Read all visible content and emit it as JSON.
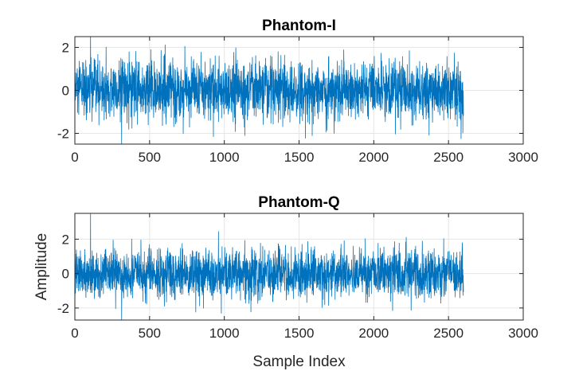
{
  "chart_data": [
    {
      "type": "line",
      "title": "Phantom-I",
      "xlabel": "",
      "ylabel": "",
      "xlim": [
        0,
        3000
      ],
      "ylim": [
        -2.5,
        2.5
      ],
      "xticks": [
        0,
        500,
        1000,
        1500,
        2000,
        2500,
        3000
      ],
      "yticks": [
        -2,
        0,
        2
      ],
      "grid": true,
      "series": [
        {
          "color": "#0072BD",
          "n_samples": 2600,
          "x_range": [
            1,
            2600
          ],
          "mean": 0,
          "std": 0.7,
          "min": -2.6,
          "max": 2.5
        }
      ]
    },
    {
      "type": "line",
      "title": "Phantom-Q",
      "xlabel": "Sample Index",
      "ylabel": "Amplitude",
      "xlim": [
        0,
        3000
      ],
      "ylim": [
        -2.7,
        3.5
      ],
      "xticks": [
        0,
        500,
        1000,
        1500,
        2000,
        2500,
        3000
      ],
      "yticks": [
        -2,
        0,
        2
      ],
      "grid": true,
      "series": [
        {
          "color": "#0072BD",
          "n_samples": 2600,
          "x_range": [
            1,
            2600
          ],
          "mean": 0,
          "std": 0.7,
          "min": -2.7,
          "max": 3.5
        }
      ]
    }
  ]
}
